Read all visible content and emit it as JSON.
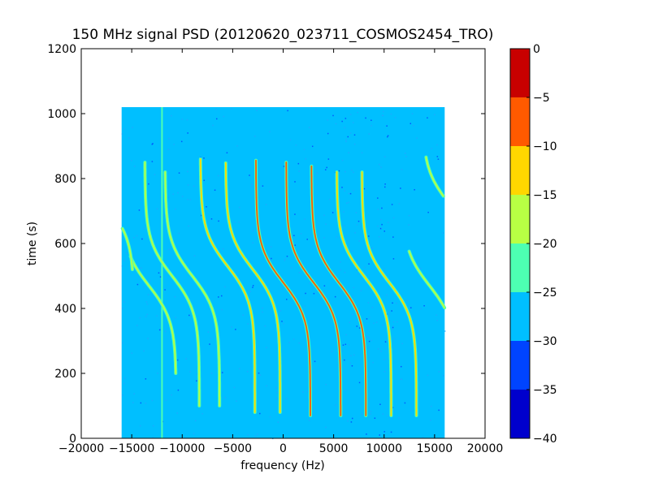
{
  "chart_data": {
    "type": "heatmap",
    "title": "150 MHz signal PSD (20120620_023711_COSMOS2454_TRO)",
    "xlabel": "frequency (Hz)",
    "ylabel": "time (s)",
    "xlim": [
      -20000,
      20000
    ],
    "ylim": [
      0,
      1200
    ],
    "x_ticks": [
      -20000,
      -15000,
      -10000,
      -5000,
      0,
      5000,
      10000,
      15000,
      20000
    ],
    "y_ticks": [
      0,
      200,
      400,
      600,
      800,
      1000,
      1200
    ],
    "data_extent": {
      "x": [
        -16000,
        16000
      ],
      "y": [
        0,
        1020
      ]
    },
    "background_level": -27.5,
    "colorbar": {
      "min": -40,
      "max": 0,
      "ticks": [
        0,
        -5,
        -10,
        -15,
        -20,
        -25,
        -30,
        -35,
        -40
      ],
      "bands": [
        {
          "from": -40,
          "to": -35,
          "color": "#0000cd"
        },
        {
          "from": -35,
          "to": -30,
          "color": "#0044ff"
        },
        {
          "from": -30,
          "to": -25,
          "color": "#00bfff"
        },
        {
          "from": -25,
          "to": -20,
          "color": "#4dffb2"
        },
        {
          "from": -20,
          "to": -15,
          "color": "#b8ff44"
        },
        {
          "from": -15,
          "to": -10,
          "color": "#ffd700"
        },
        {
          "from": -10,
          "to": -5,
          "color": "#ff5a00"
        },
        {
          "from": -5,
          "to": 0,
          "color": "#c80000"
        }
      ]
    },
    "stationary_line": {
      "freq": -12000,
      "t_start": 0,
      "t_end": 1020
    },
    "doppler_traces": [
      {
        "center_freq": -13300,
        "t_center": 470,
        "t_start": 200,
        "t_end": 560,
        "peak": -18
      },
      {
        "center_freq": -11000,
        "t_center": 500,
        "t_start": 100,
        "t_end": 850,
        "peak": -17
      },
      {
        "center_freq": -9000,
        "t_center": 500,
        "t_start": 100,
        "t_end": 820,
        "peak": -17
      },
      {
        "center_freq": -5500,
        "t_center": 530,
        "t_start": 80,
        "t_end": 860,
        "peak": -14
      },
      {
        "center_freq": -3000,
        "t_center": 520,
        "t_start": 80,
        "t_end": 850,
        "peak": -11
      },
      {
        "center_freq": 0,
        "t_center": 480,
        "t_start": 70,
        "t_end": 860,
        "peak": -8
      },
      {
        "center_freq": 3000,
        "t_center": 480,
        "t_start": 70,
        "t_end": 850,
        "peak": -9
      },
      {
        "center_freq": 5500,
        "t_center": 480,
        "t_start": 70,
        "t_end": 840,
        "peak": -9
      },
      {
        "center_freq": 8000,
        "t_center": 500,
        "t_start": 70,
        "t_end": 820,
        "peak": -12
      },
      {
        "center_freq": 10500,
        "t_center": 480,
        "t_start": 70,
        "t_end": 820,
        "peak": -14
      },
      {
        "center_freq": 14500,
        "t_center": 470,
        "t_start": 300,
        "t_end": 580,
        "peak": -18
      },
      {
        "center_freq": 16500,
        "t_center": 720,
        "t_start": 560,
        "t_end": 870,
        "peak": -18
      },
      {
        "center_freq": -17500,
        "t_center": 720,
        "t_start": 520,
        "t_end": 860,
        "peak": -18
      }
    ]
  }
}
